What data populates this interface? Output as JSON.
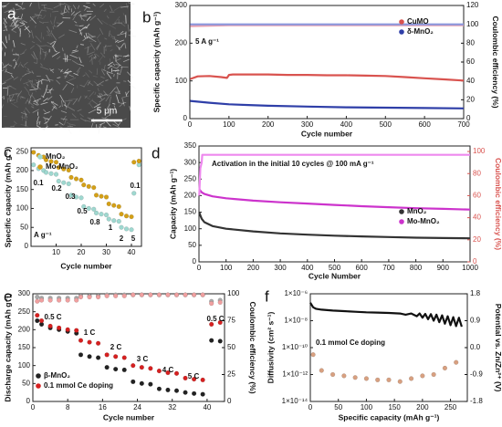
{
  "chart_data": [
    {
      "type": "image",
      "panel_label": "a",
      "scale_bar": "5 μm"
    },
    {
      "type": "line",
      "panel_label": "b",
      "xlabel": "Cycle number",
      "ylabel": "Specific capacity (mAh g⁻¹)",
      "y2label": "Coulombic efficiency (%)",
      "xlim": [
        0,
        700
      ],
      "xticks": [
        0,
        100,
        200,
        300,
        400,
        500,
        600,
        700
      ],
      "ylim": [
        0,
        300
      ],
      "yticks": [
        0,
        100,
        200,
        300
      ],
      "y2lim": [
        0,
        120
      ],
      "y2ticks": [
        0,
        20,
        40,
        60,
        80,
        100,
        120
      ],
      "annotations": [
        "5 A g⁻¹"
      ],
      "legend": "upper right",
      "series": [
        {
          "name": "CuMO",
          "color": "#d9534f",
          "mode": "line",
          "x": [
            1,
            20,
            50,
            80,
            95,
            100,
            110,
            150,
            200,
            250,
            300,
            350,
            400,
            450,
            500,
            550,
            600,
            650,
            700
          ],
          "values": [
            105,
            112,
            113,
            110,
            108,
            116,
            117,
            117,
            117,
            116,
            116,
            115,
            115,
            114,
            113,
            110,
            107,
            104,
            101
          ]
        },
        {
          "name": "δ-MnO₂",
          "color": "#2f3fa8",
          "mode": "line",
          "x": [
            1,
            50,
            100,
            150,
            200,
            300,
            400,
            500,
            600,
            700
          ],
          "values": [
            47,
            42,
            38,
            36,
            34,
            32,
            30,
            29,
            28,
            27
          ]
        },
        {
          "color": "#e8a0b0",
          "mode": "line",
          "axis": "y2",
          "x": [
            1,
            100,
            200,
            300,
            400,
            500,
            600,
            700
          ],
          "values": [
            98,
            99,
            99,
            99,
            99,
            99,
            99,
            99
          ]
        },
        {
          "color": "#8a97dd",
          "mode": "line",
          "axis": "y2",
          "x": [
            1,
            100,
            200,
            300,
            400,
            500,
            600,
            700
          ],
          "values": [
            100,
            100,
            100,
            100,
            100,
            100,
            100,
            100
          ]
        }
      ]
    },
    {
      "type": "scatter",
      "panel_label": "c",
      "xlabel": "Cycle number",
      "ylabel": "Specific capacity (mAh g⁻¹)",
      "xlim": [
        0,
        44
      ],
      "xticks": [
        10,
        20,
        30,
        40
      ],
      "ylim": [
        0,
        260
      ],
      "yticks": [
        0,
        50,
        100,
        150,
        200,
        250
      ],
      "annotations": [
        "0.1",
        "0.2",
        "0.3",
        "0.5",
        "0.8",
        "1",
        "2",
        "5",
        "0.1",
        "A g⁻¹"
      ],
      "legend": "upper left",
      "series": [
        {
          "name": "MnO₂",
          "color": "#9fd8d0",
          "mode": "markers",
          "x": [
            1,
            3,
            5,
            6,
            8,
            10,
            11,
            13,
            15,
            16,
            18,
            20,
            21,
            23,
            25,
            26,
            28,
            30,
            31,
            33,
            35,
            36,
            38,
            40,
            41,
            43
          ],
          "values": [
            215,
            205,
            200,
            195,
            192,
            190,
            172,
            168,
            165,
            135,
            130,
            128,
            105,
            100,
            98,
            88,
            85,
            83,
            72,
            68,
            66,
            50,
            46,
            44,
            140,
            215
          ]
        },
        {
          "name": "Mo-MnO₂",
          "color": "#d4a017",
          "mode": "markers",
          "x": [
            1,
            3,
            5,
            6,
            8,
            10,
            11,
            13,
            15,
            16,
            18,
            20,
            21,
            23,
            25,
            26,
            28,
            30,
            31,
            33,
            35,
            36,
            38,
            40,
            41,
            43
          ],
          "values": [
            248,
            240,
            236,
            228,
            224,
            222,
            208,
            204,
            201,
            182,
            178,
            175,
            162,
            158,
            155,
            135,
            132,
            130,
            112,
            108,
            105,
            85,
            80,
            78,
            222,
            225
          ]
        }
      ]
    },
    {
      "type": "line",
      "panel_label": "d",
      "xlabel": "Cycle Number",
      "ylabel": "Capacity (mAh g⁻¹)",
      "y2label": "Coulombic efficiency (%)",
      "y2_color": "#d9534f",
      "xlim": [
        0,
        1000
      ],
      "xticks": [
        0,
        100,
        200,
        300,
        400,
        500,
        600,
        700,
        800,
        900,
        1000
      ],
      "ylim": [
        0,
        350
      ],
      "yticks": [
        0,
        50,
        100,
        150,
        200,
        250,
        300,
        350
      ],
      "y2lim": [
        0,
        105
      ],
      "y2ticks": [
        0,
        20,
        40,
        60,
        80,
        100
      ],
      "annotations": [
        "Activation in the initial 10 cycles @ 100 mA g⁻¹"
      ],
      "legend": "center right",
      "series": [
        {
          "name": "MnO₂",
          "color": "#333333",
          "mode": "line",
          "x": [
            1,
            5,
            10,
            20,
            50,
            100,
            200,
            300,
            400,
            500,
            600,
            700,
            800,
            900,
            1000
          ],
          "values": [
            150,
            140,
            130,
            120,
            108,
            100,
            92,
            86,
            82,
            79,
            77,
            75,
            73,
            72,
            71
          ]
        },
        {
          "name": "Mo-MnO₂",
          "color": "#cc33cc",
          "mode": "line",
          "x": [
            1,
            5,
            10,
            20,
            50,
            100,
            200,
            300,
            400,
            500,
            600,
            700,
            800,
            900,
            1000
          ],
          "values": [
            220,
            215,
            210,
            205,
            198,
            192,
            185,
            180,
            176,
            172,
            168,
            165,
            162,
            160,
            158
          ]
        },
        {
          "color": "#ee88ee",
          "mode": "line",
          "axis": "y2",
          "x": [
            1,
            5,
            10,
            12,
            20,
            50,
            100,
            200,
            300,
            400,
            500,
            600,
            700,
            800,
            900,
            1000
          ],
          "values": [
            60,
            85,
            90,
            97,
            97,
            97,
            97,
            97,
            97,
            97,
            97,
            97,
            97,
            97,
            97,
            97
          ]
        }
      ]
    },
    {
      "type": "scatter",
      "panel_label": "e",
      "xlabel": "Cycle number",
      "ylabel": "Discharge capacity (mAh g⁻¹)",
      "y2label": "Coulombic efficiency (%)",
      "xlim": [
        0,
        44
      ],
      "xticks": [
        0,
        8,
        16,
        24,
        32,
        40
      ],
      "ylim": [
        0,
        300
      ],
      "yticks": [
        0,
        50,
        100,
        150,
        200,
        250,
        300
      ],
      "y2lim": [
        0,
        100
      ],
      "y2ticks": [
        0,
        25,
        50,
        75,
        100
      ],
      "annotations": [
        "0.5 C",
        "1 C",
        "2 C",
        "3 C",
        "4 C",
        "5 C",
        "0.5 C"
      ],
      "legend": "lower left",
      "series": [
        {
          "name": "β-MnO₂",
          "color": "#222222",
          "mode": "markers",
          "x": [
            1,
            2,
            4,
            6,
            8,
            10,
            11,
            13,
            15,
            17,
            19,
            21,
            23,
            25,
            27,
            29,
            31,
            33,
            35,
            37,
            39,
            41,
            43
          ],
          "values": [
            225,
            215,
            205,
            200,
            195,
            190,
            130,
            125,
            122,
            95,
            90,
            88,
            55,
            50,
            48,
            35,
            32,
            30,
            25,
            22,
            20,
            170,
            168
          ]
        },
        {
          "name": "0.1 mmol Ce doping",
          "color": "#d62020",
          "mode": "markers",
          "x": [
            1,
            2,
            4,
            6,
            8,
            10,
            11,
            13,
            15,
            17,
            19,
            21,
            23,
            25,
            27,
            29,
            31,
            33,
            35,
            37,
            39,
            41,
            43
          ],
          "values": [
            240,
            225,
            210,
            205,
            200,
            198,
            170,
            165,
            162,
            130,
            125,
            122,
            100,
            95,
            92,
            85,
            80,
            78,
            65,
            62,
            60,
            215,
            220
          ]
        },
        {
          "color": "#aaaaaa",
          "mode": "markers",
          "axis": "y2",
          "x": [
            1,
            2,
            4,
            6,
            8,
            10,
            11,
            13,
            15,
            17,
            19,
            21,
            23,
            25,
            27,
            29,
            31,
            33,
            35,
            37,
            39,
            41,
            43
          ],
          "values": [
            97,
            96,
            96,
            96,
            96,
            96,
            98,
            98,
            98,
            99,
            99,
            99,
            99,
            99,
            99,
            99,
            99,
            99,
            99,
            99,
            99,
            93,
            94
          ]
        },
        {
          "color": "#f0a0a0",
          "mode": "markers",
          "axis": "y2",
          "x": [
            1,
            2,
            4,
            6,
            8,
            10,
            11,
            13,
            15,
            17,
            19,
            21,
            23,
            25,
            27,
            29,
            31,
            33,
            35,
            37,
            39,
            41,
            43
          ],
          "values": [
            93,
            94,
            94,
            94,
            94,
            94,
            97,
            97,
            97,
            98,
            98,
            98,
            99,
            99,
            99,
            99,
            99,
            99,
            99,
            99,
            99,
            91,
            92
          ]
        }
      ]
    },
    {
      "type": "scatter",
      "panel_label": "f",
      "xlabel": "Specific capacity (mAh g⁻¹)",
      "ylabel": "Diffusivity (cm² s⁻¹)",
      "y2label": "Potential vs. Zn/Zn²⁺ (V)",
      "xlim": [
        0,
        280
      ],
      "xticks": [
        0,
        50,
        100,
        150,
        200,
        250
      ],
      "ylog": true,
      "ylim": [
        1e-14,
        1e-06
      ],
      "yticks": [
        {
          "value": 1e-14,
          "label": "1×10⁻¹⁴"
        },
        {
          "value": 1e-12,
          "label": "1×10⁻¹²"
        },
        {
          "value": 1e-10,
          "label": "1×10⁻¹⁰"
        },
        {
          "value": 1e-08,
          "label": "1×10⁻⁸"
        },
        {
          "value": 1e-06,
          "label": "1×10⁻⁶"
        }
      ],
      "y2lim": [
        -1.8,
        1.8
      ],
      "y2ticks": [
        1.8,
        0.9,
        {
          "value": 0,
          "label": "0.0"
        },
        -0.9,
        -1.8
      ],
      "annotations": [
        "0.1 mmol Ce doping"
      ],
      "series": [
        {
          "color": "#d8a080",
          "mode": "markers",
          "x": [
            5,
            20,
            40,
            60,
            80,
            100,
            120,
            140,
            160,
            180,
            200,
            220,
            240,
            260
          ],
          "values": [
            3e-11,
            2e-12,
            1e-12,
            8e-13,
            6e-13,
            5e-13,
            4e-13,
            4e-13,
            3e-13,
            5e-13,
            8e-13,
            1e-12,
            3e-12,
            8e-12
          ]
        },
        {
          "color": "#111111",
          "mode": "line",
          "axis": "y2",
          "x": [
            0,
            5,
            10,
            20,
            40,
            60,
            80,
            100,
            120,
            140,
            160,
            170,
            180,
            190,
            195,
            200,
            205,
            210,
            215,
            220,
            225,
            230,
            235,
            240,
            245,
            250,
            255,
            260,
            265,
            270
          ],
          "values": [
            1.5,
            1.35,
            1.3,
            1.27,
            1.24,
            1.22,
            1.2,
            1.18,
            1.17,
            1.16,
            1.14,
            1.1,
            1.14,
            1.05,
            1.14,
            1.0,
            1.13,
            0.95,
            1.12,
            0.9,
            1.1,
            0.85,
            1.08,
            0.8,
            1.05,
            0.75,
            1.02,
            0.72,
            1.0,
            0.7
          ]
        }
      ]
    }
  ]
}
